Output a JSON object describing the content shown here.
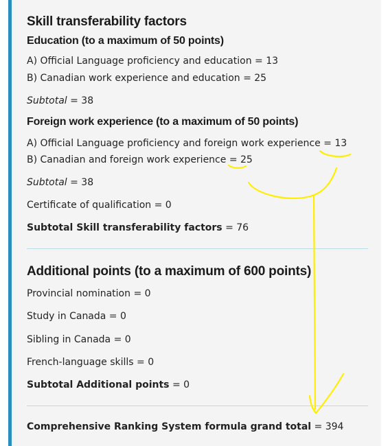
{
  "skill": {
    "title": "Skill transferability factors",
    "education": {
      "heading": "Education (to a maximum of 50 points)",
      "item_a": "A) Official Language proficiency and education = 13",
      "item_b": "B) Canadian work experience and education = 25",
      "subtotal_label": "Subtotal",
      "subtotal_value": " = 38"
    },
    "foreign": {
      "heading": "Foreign work experience (to a maximum of 50 points)",
      "item_a": "A) Official Language proficiency and foreign work experience = 13",
      "item_b": "B) Canadian and foreign work experience = 25",
      "subtotal_label": "Subtotal",
      "subtotal_value": " = 38"
    },
    "certificate": "Certificate of qualification = 0",
    "subtotal_label": "Subtotal Skill transferability factors",
    "subtotal_value": " = 76"
  },
  "additional": {
    "title": "Additional points (to a maximum of 600 points)",
    "items": [
      "Provincial nomination = 0",
      "Study in Canada = 0",
      "Sibling in Canada = 0",
      "French-language skills = 0"
    ],
    "subtotal_label": "Subtotal Additional points",
    "subtotal_value": " = 0"
  },
  "grand_total": {
    "label": "Comprehensive Ranking System formula grand total",
    "value": " = 394"
  },
  "colors": {
    "accent_bar": "#2b8fbd",
    "annotation": "#ffee00",
    "divider": "#b9dde6"
  }
}
